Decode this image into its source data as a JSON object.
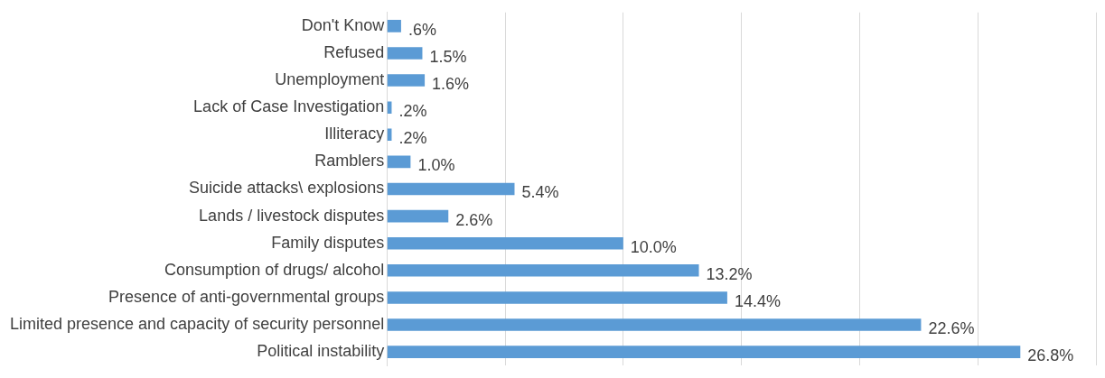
{
  "chart_data": {
    "type": "bar",
    "orientation": "horizontal",
    "categories": [
      "Don't Know",
      "Refused",
      "Unemployment",
      "Lack of Case Investigation",
      "Illiteracy",
      "Ramblers",
      "Suicide attacks\\ explosions",
      "Lands / livestock disputes",
      "Family disputes",
      "Consumption of drugs/ alcohol",
      "Presence of anti-governmental groups",
      "Limited presence and capacity of security personnel",
      "Political instability"
    ],
    "values": [
      0.6,
      1.5,
      1.6,
      0.2,
      0.2,
      1.0,
      5.4,
      2.6,
      10.0,
      13.2,
      14.4,
      22.6,
      26.8
    ],
    "value_labels": [
      ".6%",
      "1.5%",
      "1.6%",
      ".2%",
      ".2%",
      "1.0%",
      "5.4%",
      "2.6%",
      "10.0%",
      "13.2%",
      "14.4%",
      "22.6%",
      "26.8%"
    ],
    "color": "#5b9bd5",
    "xlim": [
      0,
      30
    ],
    "xticks": [
      {
        "value": 0,
        "label": null
      },
      {
        "value": 5,
        "label": null
      },
      {
        "value": 10,
        "label": null
      },
      {
        "value": 15,
        "label": null
      },
      {
        "value": 20,
        "label": null
      },
      {
        "value": 25,
        "label": null
      },
      {
        "value": 30,
        "label": null
      }
    ],
    "tick_labels": "y",
    "grid": "x",
    "legend": false
  }
}
